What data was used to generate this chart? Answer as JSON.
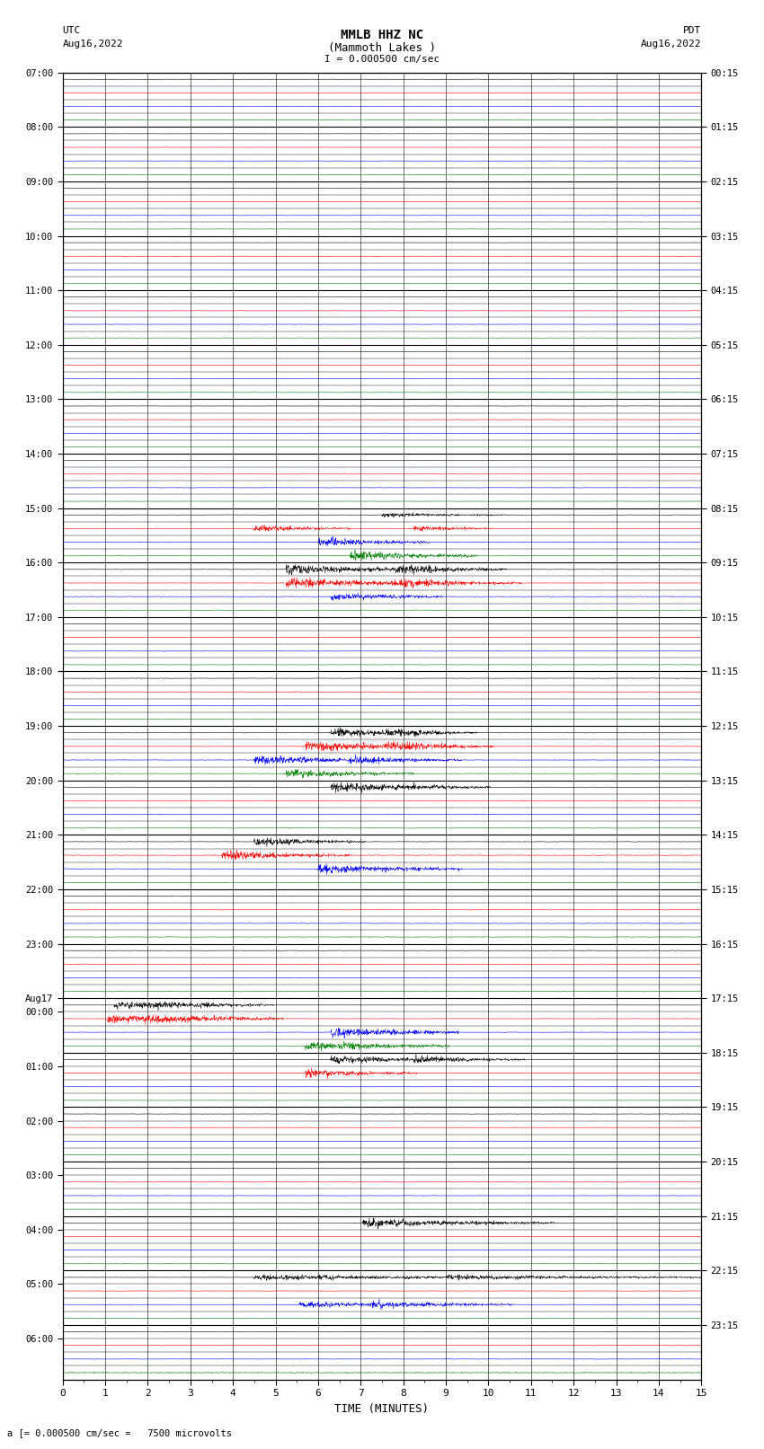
{
  "title_line1": "MMLB HHZ NC",
  "title_line2": "(Mammoth Lakes )",
  "scale_label": "I = 0.000500 cm/sec",
  "left_label_line1": "UTC",
  "left_label_line2": "Aug16,2022",
  "right_label_line1": "PDT",
  "right_label_line2": "Aug16,2022",
  "bottom_label": "a [= 0.000500 cm/sec =   7500 microvolts",
  "xlabel": "TIME (MINUTES)",
  "bg_color": "#ffffff",
  "trace_colors": [
    "black",
    "red",
    "blue",
    "green"
  ],
  "n_rows": 96,
  "x_max": 15,
  "seed": 12345,
  "left_times_utc": [
    "07:00",
    "",
    "",
    "",
    "08:00",
    "",
    "",
    "",
    "09:00",
    "",
    "",
    "",
    "10:00",
    "",
    "",
    "",
    "11:00",
    "",
    "",
    "",
    "12:00",
    "",
    "",
    "",
    "13:00",
    "",
    "",
    "",
    "14:00",
    "",
    "",
    "",
    "15:00",
    "",
    "",
    "",
    "16:00",
    "",
    "",
    "",
    "17:00",
    "",
    "",
    "",
    "18:00",
    "",
    "",
    "",
    "19:00",
    "",
    "",
    "",
    "20:00",
    "",
    "",
    "",
    "21:00",
    "",
    "",
    "",
    "22:00",
    "",
    "",
    "",
    "23:00",
    "",
    "",
    "",
    "Aug17",
    "00:00",
    "",
    "",
    "",
    "01:00",
    "",
    "",
    "",
    "02:00",
    "",
    "",
    "",
    "03:00",
    "",
    "",
    "",
    "04:00",
    "",
    "",
    "",
    "05:00",
    "",
    "",
    "",
    "06:00",
    "",
    ""
  ],
  "right_times_pdt": [
    "00:15",
    "",
    "",
    "",
    "01:15",
    "",
    "",
    "",
    "02:15",
    "",
    "",
    "",
    "03:15",
    "",
    "",
    "",
    "04:15",
    "",
    "",
    "",
    "05:15",
    "",
    "",
    "",
    "06:15",
    "",
    "",
    "",
    "07:15",
    "",
    "",
    "",
    "08:15",
    "",
    "",
    "",
    "09:15",
    "",
    "",
    "",
    "10:15",
    "",
    "",
    "",
    "11:15",
    "",
    "",
    "",
    "12:15",
    "",
    "",
    "",
    "13:15",
    "",
    "",
    "",
    "14:15",
    "",
    "",
    "",
    "15:15",
    "",
    "",
    "",
    "16:15",
    "",
    "",
    "",
    "17:15",
    "",
    "",
    "",
    "18:15",
    "",
    "",
    "",
    "19:15",
    "",
    "",
    "",
    "20:15",
    "",
    "",
    "",
    "21:15",
    "",
    "",
    "",
    "22:15",
    "",
    "",
    "",
    "23:15",
    "",
    ""
  ],
  "aug17_row": 68
}
